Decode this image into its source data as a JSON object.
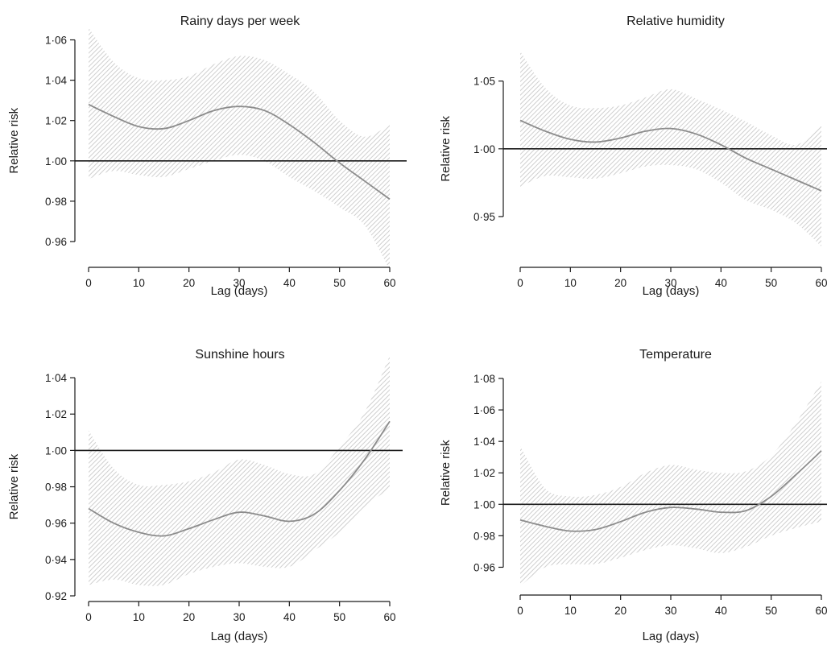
{
  "colors": {
    "background": "#ffffff",
    "axis": "#1a1a1a",
    "curve": "#8c8c8c",
    "band_hatch": "#d4d4d4",
    "reference_line": "#1a1a1a"
  },
  "chart_data": [
    {
      "type": "line",
      "title": "Rainy days per week",
      "xlabel": "Lag (days)",
      "ylabel": "Relative risk",
      "xlim": [
        0,
        60
      ],
      "ylim": [
        0.95,
        1.067
      ],
      "x_ticks": [
        0,
        10,
        20,
        30,
        40,
        50,
        60
      ],
      "y_ticks": [
        0.96,
        0.98,
        1.0,
        1.02,
        1.04,
        1.06
      ],
      "y_tick_labels": [
        "0·96",
        "0·98",
        "1·00",
        "1·02",
        "1·04",
        "1·06"
      ],
      "reference_line": 1.0,
      "grid": false,
      "series": [
        {
          "x": [
            0,
            5,
            10,
            15,
            20,
            25,
            30,
            35,
            40,
            45,
            50,
            55,
            60
          ],
          "y": [
            1.028,
            1.022,
            1.017,
            1.016,
            1.02,
            1.025,
            1.027,
            1.025,
            1.018,
            1.009,
            0.999,
            0.99,
            0.981
          ],
          "lower": [
            0.991,
            0.995,
            0.993,
            0.992,
            0.996,
            1.0,
            1.003,
            1.0,
            0.992,
            0.985,
            0.977,
            0.968,
            0.946
          ],
          "upper": [
            1.066,
            1.049,
            1.041,
            1.04,
            1.042,
            1.048,
            1.052,
            1.05,
            1.043,
            1.034,
            1.02,
            1.012,
            1.018
          ]
        }
      ]
    },
    {
      "type": "line",
      "title": "Relative humidity",
      "xlabel": "Lag (days)",
      "ylabel": "Relative risk",
      "xlim": [
        0,
        60
      ],
      "ylim": [
        0.925,
        1.073
      ],
      "x_ticks": [
        0,
        10,
        20,
        30,
        40,
        50,
        60
      ],
      "y_ticks": [
        0.95,
        1.0,
        1.05
      ],
      "y_tick_labels": [
        "0·95",
        "1·00",
        "1·05"
      ],
      "reference_line": 1.0,
      "grid": false,
      "series": [
        {
          "x": [
            0,
            5,
            10,
            15,
            20,
            25,
            30,
            35,
            40,
            45,
            50,
            55,
            60
          ],
          "y": [
            1.021,
            1.013,
            1.007,
            1.005,
            1.008,
            1.013,
            1.015,
            1.011,
            1.003,
            0.993,
            0.985,
            0.977,
            0.969
          ],
          "lower": [
            0.972,
            0.98,
            0.979,
            0.978,
            0.982,
            0.987,
            0.988,
            0.985,
            0.975,
            0.962,
            0.955,
            0.945,
            0.928
          ],
          "upper": [
            1.072,
            1.045,
            1.032,
            1.03,
            1.032,
            1.038,
            1.044,
            1.037,
            1.029,
            1.02,
            1.01,
            1.003,
            1.017
          ]
        }
      ]
    },
    {
      "type": "line",
      "title": "Sunshine hours",
      "xlabel": "Lag (days)",
      "ylabel": "Relative risk",
      "xlim": [
        0,
        60
      ],
      "ylim": [
        0.92,
        1.052
      ],
      "x_ticks": [
        0,
        10,
        20,
        30,
        40,
        50,
        60
      ],
      "y_ticks": [
        0.92,
        0.94,
        0.96,
        0.98,
        1.0,
        1.02,
        1.04
      ],
      "y_tick_labels": [
        "0·92",
        "0·94",
        "0·96",
        "0·98",
        "1·00",
        "1·02",
        "1·04"
      ],
      "reference_line": 1.0,
      "grid": false,
      "series": [
        {
          "x": [
            0,
            5,
            10,
            15,
            20,
            25,
            30,
            35,
            40,
            45,
            50,
            55,
            60
          ],
          "y": [
            0.968,
            0.96,
            0.955,
            0.953,
            0.957,
            0.962,
            0.966,
            0.964,
            0.961,
            0.965,
            0.978,
            0.995,
            1.016
          ],
          "lower": [
            0.926,
            0.929,
            0.926,
            0.926,
            0.932,
            0.936,
            0.938,
            0.936,
            0.936,
            0.945,
            0.955,
            0.969,
            0.979
          ],
          "upper": [
            1.011,
            0.99,
            0.981,
            0.981,
            0.983,
            0.988,
            0.995,
            0.992,
            0.987,
            0.987,
            1.002,
            1.021,
            1.052
          ]
        }
      ]
    },
    {
      "type": "line",
      "title": "Temperature",
      "xlabel": "Lag (days)",
      "ylabel": "Relative risk",
      "xlim": [
        0,
        60
      ],
      "ylim": [
        0.95,
        1.08
      ],
      "x_ticks": [
        0,
        10,
        20,
        30,
        40,
        50,
        60
      ],
      "y_ticks": [
        0.96,
        0.98,
        1.0,
        1.02,
        1.04,
        1.06,
        1.08
      ],
      "y_tick_labels": [
        "0·96",
        "0·98",
        "1·00",
        "1·02",
        "1·04",
        "1·06",
        "1·08"
      ],
      "reference_line": 1.0,
      "grid": false,
      "series": [
        {
          "x": [
            0,
            5,
            10,
            15,
            20,
            25,
            30,
            35,
            40,
            45,
            50,
            55,
            60
          ],
          "y": [
            0.99,
            0.986,
            0.983,
            0.984,
            0.989,
            0.995,
            0.998,
            0.997,
            0.995,
            0.996,
            1.005,
            1.019,
            1.034
          ],
          "lower": [
            0.948,
            0.96,
            0.962,
            0.962,
            0.966,
            0.971,
            0.974,
            0.972,
            0.969,
            0.973,
            0.98,
            0.985,
            0.989
          ],
          "upper": [
            1.037,
            1.01,
            1.005,
            1.006,
            1.011,
            1.02,
            1.025,
            1.022,
            1.02,
            1.021,
            1.031,
            1.052,
            1.078
          ]
        }
      ]
    }
  ]
}
